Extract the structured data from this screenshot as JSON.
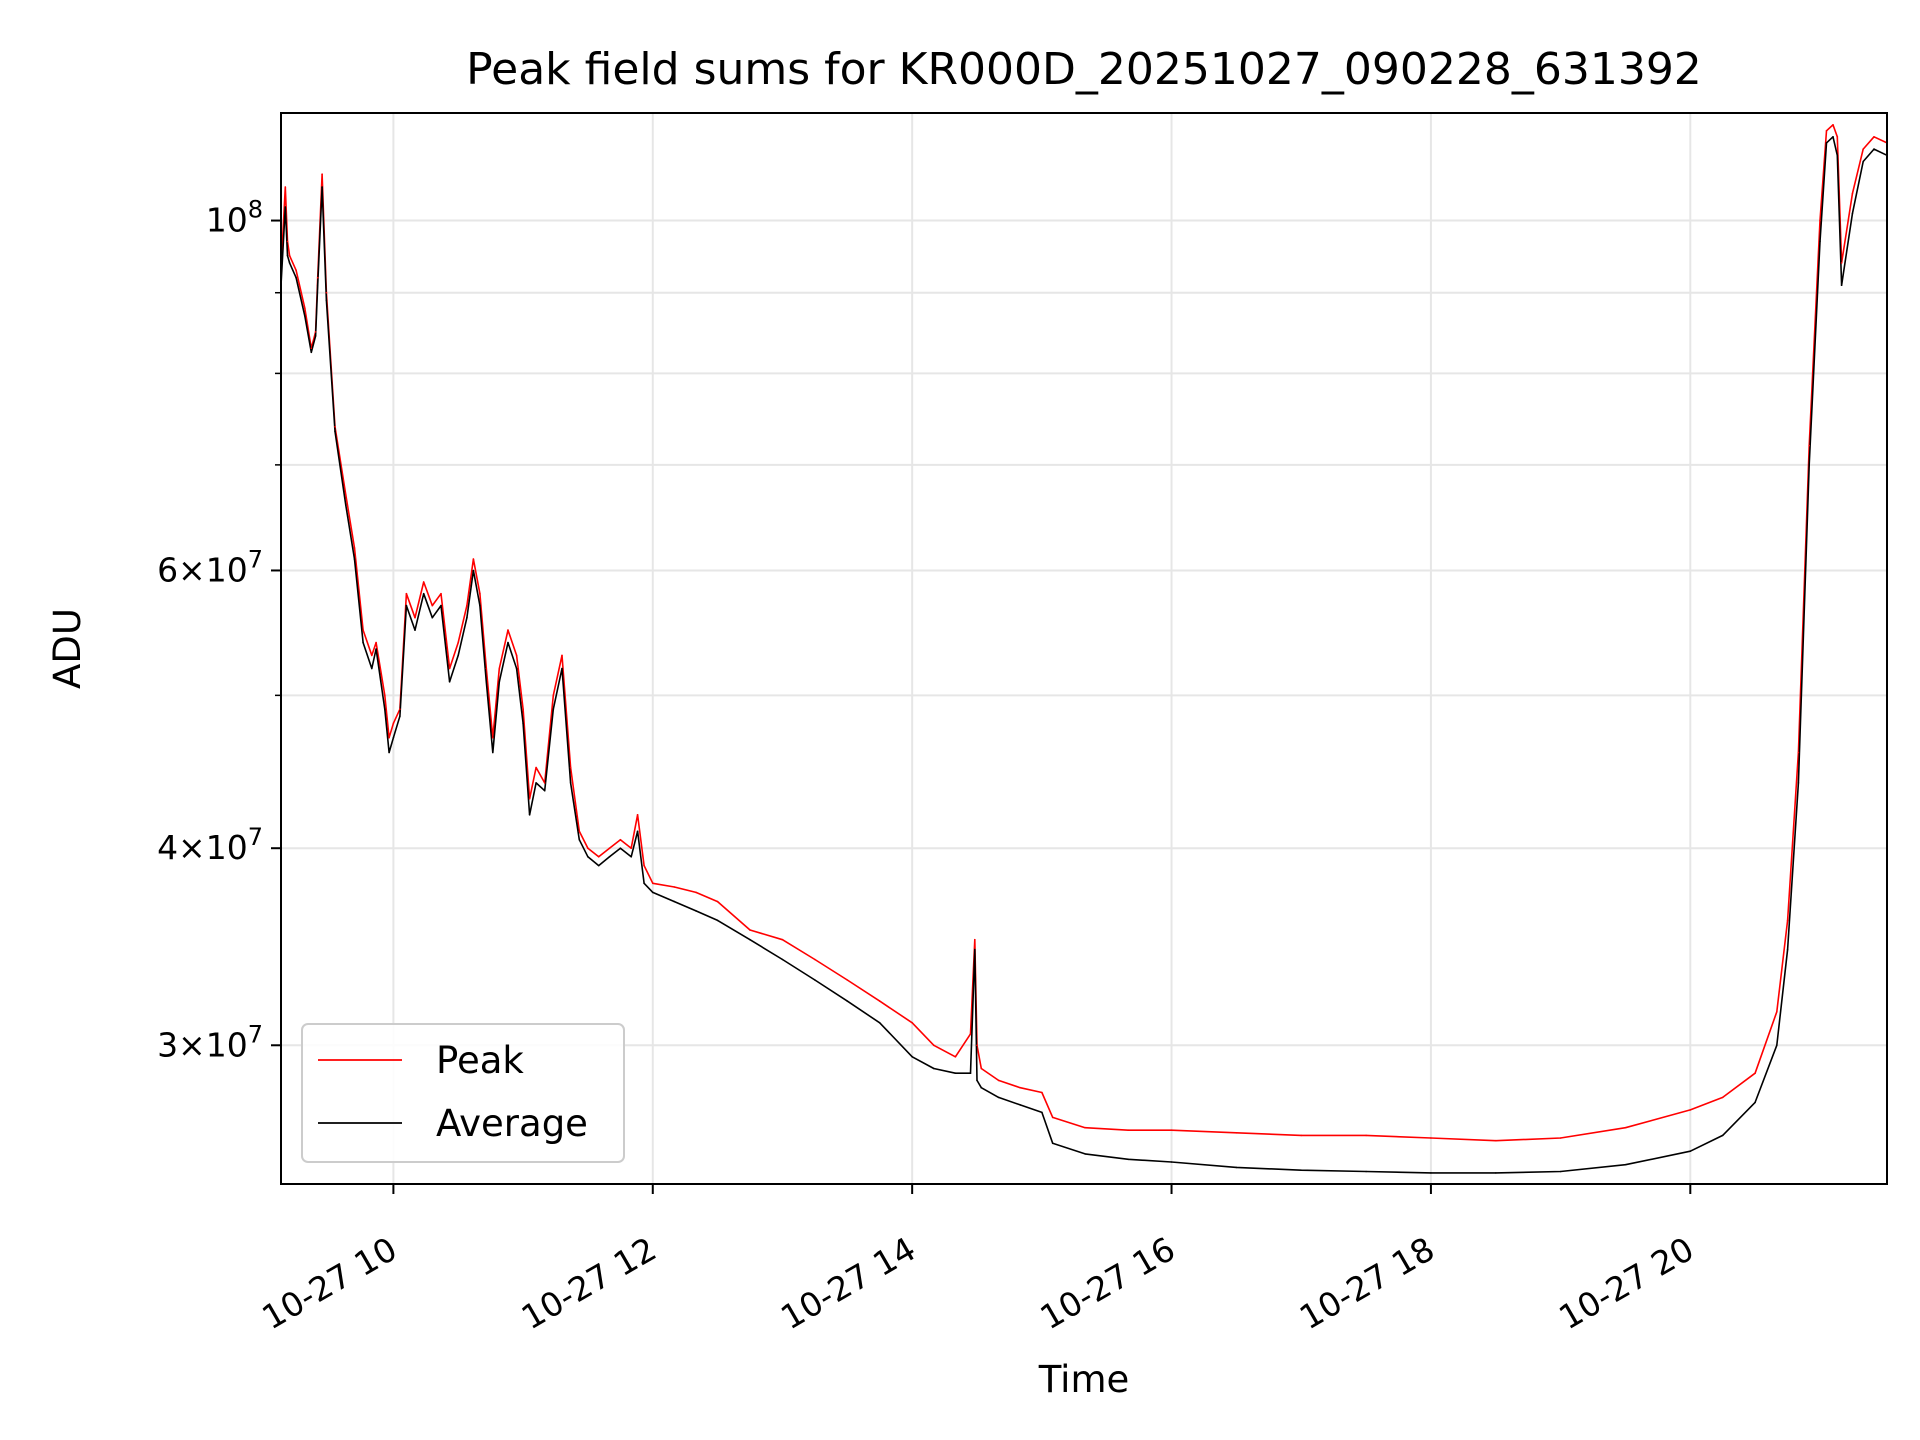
{
  "chart_data": {
    "type": "line",
    "title": "Peak field sums for KR000D_20251027_090228_631392",
    "xlabel": "Time",
    "ylabel": "ADU",
    "yscale": "log",
    "xlim": [
      "2025-10-27 09:08",
      "2025-10-27 21:31"
    ],
    "ylim": [
      24500000,
      117000000
    ],
    "grid": true,
    "legend_position": "lower-left",
    "x_ticks": [
      "10-27 10",
      "10-27 12",
      "10-27 14",
      "10-27 16",
      "10-27 18",
      "10-27 20"
    ],
    "x_tick_times": [
      "2025-10-27 10:00",
      "2025-10-27 12:00",
      "2025-10-27 14:00",
      "2025-10-27 16:00",
      "2025-10-27 18:00",
      "2025-10-27 20:00"
    ],
    "y_major_ticks": [
      {
        "value": 100000000,
        "base": "10",
        "exp": "8",
        "mant": ""
      },
      {
        "value": 60000000,
        "base": "10",
        "exp": "7",
        "mant": "6"
      },
      {
        "value": 40000000,
        "base": "10",
        "exp": "7",
        "mant": "4"
      },
      {
        "value": 30000000,
        "base": "10",
        "exp": "7",
        "mant": "3"
      }
    ],
    "y_minor_ticks": [
      50000000,
      70000000,
      80000000,
      90000000
    ],
    "series": [
      {
        "name": "Peak",
        "color": "#ff0000",
        "x": [
          "2025-10-27 09:08",
          "2025-10-27 09:10",
          "2025-10-27 09:11",
          "2025-10-27 09:12",
          "2025-10-27 09:15",
          "2025-10-27 09:19",
          "2025-10-27 09:22",
          "2025-10-27 09:24",
          "2025-10-27 09:25",
          "2025-10-27 09:27",
          "2025-10-27 09:29",
          "2025-10-27 09:33",
          "2025-10-27 09:38",
          "2025-10-27 09:42",
          "2025-10-27 09:46",
          "2025-10-27 09:50",
          "2025-10-27 09:52",
          "2025-10-27 09:56",
          "2025-10-27 09:58",
          "2025-10-27 10:00",
          "2025-10-27 10:03",
          "2025-10-27 10:06",
          "2025-10-27 10:10",
          "2025-10-27 10:14",
          "2025-10-27 10:18",
          "2025-10-27 10:22",
          "2025-10-27 10:26",
          "2025-10-27 10:30",
          "2025-10-27 10:34",
          "2025-10-27 10:37",
          "2025-10-27 10:40",
          "2025-10-27 10:43",
          "2025-10-27 10:46",
          "2025-10-27 10:49",
          "2025-10-27 10:53",
          "2025-10-27 10:57",
          "2025-10-27 11:00",
          "2025-10-27 11:03",
          "2025-10-27 11:06",
          "2025-10-27 11:10",
          "2025-10-27 11:14",
          "2025-10-27 11:18",
          "2025-10-27 11:22",
          "2025-10-27 11:26",
          "2025-10-27 11:30",
          "2025-10-27 11:35",
          "2025-10-27 11:40",
          "2025-10-27 11:45",
          "2025-10-27 11:50",
          "2025-10-27 11:53",
          "2025-10-27 11:56",
          "2025-10-27 12:00",
          "2025-10-27 12:10",
          "2025-10-27 12:20",
          "2025-10-27 12:30",
          "2025-10-27 12:45",
          "2025-10-27 13:00",
          "2025-10-27 13:15",
          "2025-10-27 13:30",
          "2025-10-27 13:45",
          "2025-10-27 14:00",
          "2025-10-27 14:10",
          "2025-10-27 14:20",
          "2025-10-27 14:27",
          "2025-10-27 14:29",
          "2025-10-27 14:30",
          "2025-10-27 14:32",
          "2025-10-27 14:40",
          "2025-10-27 14:50",
          "2025-10-27 15:00",
          "2025-10-27 15:05",
          "2025-10-27 15:20",
          "2025-10-27 15:40",
          "2025-10-27 16:00",
          "2025-10-27 16:30",
          "2025-10-27 17:00",
          "2025-10-27 17:30",
          "2025-10-27 18:00",
          "2025-10-27 18:30",
          "2025-10-27 19:00",
          "2025-10-27 19:30",
          "2025-10-27 20:00",
          "2025-10-27 20:15",
          "2025-10-27 20:30",
          "2025-10-27 20:40",
          "2025-10-27 20:45",
          "2025-10-27 20:50",
          "2025-10-27 20:55",
          "2025-10-27 21:00",
          "2025-10-27 21:03",
          "2025-10-27 21:06",
          "2025-10-27 21:08",
          "2025-10-27 21:10",
          "2025-10-27 21:15",
          "2025-10-27 21:20",
          "2025-10-27 21:25",
          "2025-10-27 21:31"
        ],
        "values": [
          93000000,
          105000000,
          97000000,
          95000000,
          93000000,
          88000000,
          83000000,
          85000000,
          92000000,
          107000000,
          90000000,
          74000000,
          67000000,
          62000000,
          55000000,
          53000000,
          54000000,
          50000000,
          47000000,
          48000000,
          49000000,
          58000000,
          56000000,
          59000000,
          57000000,
          58000000,
          52000000,
          54000000,
          57000000,
          61000000,
          58000000,
          52000000,
          47000000,
          52000000,
          55000000,
          53000000,
          49000000,
          43000000,
          45000000,
          44000000,
          50000000,
          53000000,
          45000000,
          41000000,
          40000000,
          39500000,
          40000000,
          40500000,
          40000000,
          42000000,
          39000000,
          38000000,
          37800000,
          37500000,
          37000000,
          35500000,
          35000000,
          34000000,
          33000000,
          32000000,
          31000000,
          30000000,
          29500000,
          30500000,
          35000000,
          30000000,
          29000000,
          28500000,
          28200000,
          28000000,
          27000000,
          26600000,
          26500000,
          26500000,
          26400000,
          26300000,
          26300000,
          26200000,
          26100000,
          26200000,
          26600000,
          27300000,
          27800000,
          28800000,
          31500000,
          36000000,
          46000000,
          72000000,
          100000000,
          114000000,
          115000000,
          113000000,
          94000000,
          104000000,
          111000000,
          113000000,
          112000000
        ]
      },
      {
        "name": "Average",
        "color": "#000000",
        "x": [
          "2025-10-27 09:08",
          "2025-10-27 09:10",
          "2025-10-27 09:11",
          "2025-10-27 09:12",
          "2025-10-27 09:15",
          "2025-10-27 09:19",
          "2025-10-27 09:22",
          "2025-10-27 09:24",
          "2025-10-27 09:25",
          "2025-10-27 09:27",
          "2025-10-27 09:29",
          "2025-10-27 09:33",
          "2025-10-27 09:38",
          "2025-10-27 09:42",
          "2025-10-27 09:46",
          "2025-10-27 09:50",
          "2025-10-27 09:52",
          "2025-10-27 09:56",
          "2025-10-27 09:58",
          "2025-10-27 10:00",
          "2025-10-27 10:03",
          "2025-10-27 10:06",
          "2025-10-27 10:10",
          "2025-10-27 10:14",
          "2025-10-27 10:18",
          "2025-10-27 10:22",
          "2025-10-27 10:26",
          "2025-10-27 10:30",
          "2025-10-27 10:34",
          "2025-10-27 10:37",
          "2025-10-27 10:40",
          "2025-10-27 10:43",
          "2025-10-27 10:46",
          "2025-10-27 10:49",
          "2025-10-27 10:53",
          "2025-10-27 10:57",
          "2025-10-27 11:00",
          "2025-10-27 11:03",
          "2025-10-27 11:06",
          "2025-10-27 11:10",
          "2025-10-27 11:14",
          "2025-10-27 11:18",
          "2025-10-27 11:22",
          "2025-10-27 11:26",
          "2025-10-27 11:30",
          "2025-10-27 11:35",
          "2025-10-27 11:40",
          "2025-10-27 11:45",
          "2025-10-27 11:50",
          "2025-10-27 11:53",
          "2025-10-27 11:56",
          "2025-10-27 12:00",
          "2025-10-27 12:10",
          "2025-10-27 12:20",
          "2025-10-27 12:30",
          "2025-10-27 12:45",
          "2025-10-27 13:00",
          "2025-10-27 13:15",
          "2025-10-27 13:30",
          "2025-10-27 13:45",
          "2025-10-27 14:00",
          "2025-10-27 14:10",
          "2025-10-27 14:20",
          "2025-10-27 14:27",
          "2025-10-27 14:29",
          "2025-10-27 14:30",
          "2025-10-27 14:32",
          "2025-10-27 14:40",
          "2025-10-27 14:50",
          "2025-10-27 15:00",
          "2025-10-27 15:05",
          "2025-10-27 15:20",
          "2025-10-27 15:40",
          "2025-10-27 16:00",
          "2025-10-27 16:30",
          "2025-10-27 17:00",
          "2025-10-27 17:30",
          "2025-10-27 18:00",
          "2025-10-27 18:30",
          "2025-10-27 19:00",
          "2025-10-27 19:30",
          "2025-10-27 20:00",
          "2025-10-27 20:15",
          "2025-10-27 20:30",
          "2025-10-27 20:40",
          "2025-10-27 20:45",
          "2025-10-27 20:50",
          "2025-10-27 20:55",
          "2025-10-27 21:00",
          "2025-10-27 21:03",
          "2025-10-27 21:06",
          "2025-10-27 21:08",
          "2025-10-27 21:10",
          "2025-10-27 21:15",
          "2025-10-27 21:20",
          "2025-10-27 21:25",
          "2025-10-27 21:31"
        ],
        "values": [
          91000000,
          102000000,
          95000000,
          94000000,
          92000000,
          87000000,
          82500000,
          84500000,
          91000000,
          105000000,
          89000000,
          73500000,
          66000000,
          61000000,
          54000000,
          52000000,
          53500000,
          49000000,
          46000000,
          47000000,
          48500000,
          57000000,
          55000000,
          58000000,
          56000000,
          57000000,
          51000000,
          53000000,
          56000000,
          60000000,
          57000000,
          51000000,
          46000000,
          51000000,
          54000000,
          52000000,
          48000000,
          42000000,
          44000000,
          43500000,
          49000000,
          52000000,
          44000000,
          40500000,
          39500000,
          39000000,
          39500000,
          40000000,
          39500000,
          41000000,
          38000000,
          37500000,
          37000000,
          36500000,
          36000000,
          35000000,
          34000000,
          33000000,
          32000000,
          31000000,
          29500000,
          29000000,
          28800000,
          28800000,
          34500000,
          28500000,
          28200000,
          27800000,
          27500000,
          27200000,
          26000000,
          25600000,
          25400000,
          25300000,
          25100000,
          25000000,
          24950000,
          24900000,
          24900000,
          24950000,
          25200000,
          25700000,
          26300000,
          27600000,
          30000000,
          34500000,
          44000000,
          70000000,
          97000000,
          112000000,
          113000000,
          110000000,
          91000000,
          101000000,
          109000000,
          111000000,
          110000000
        ]
      }
    ]
  }
}
